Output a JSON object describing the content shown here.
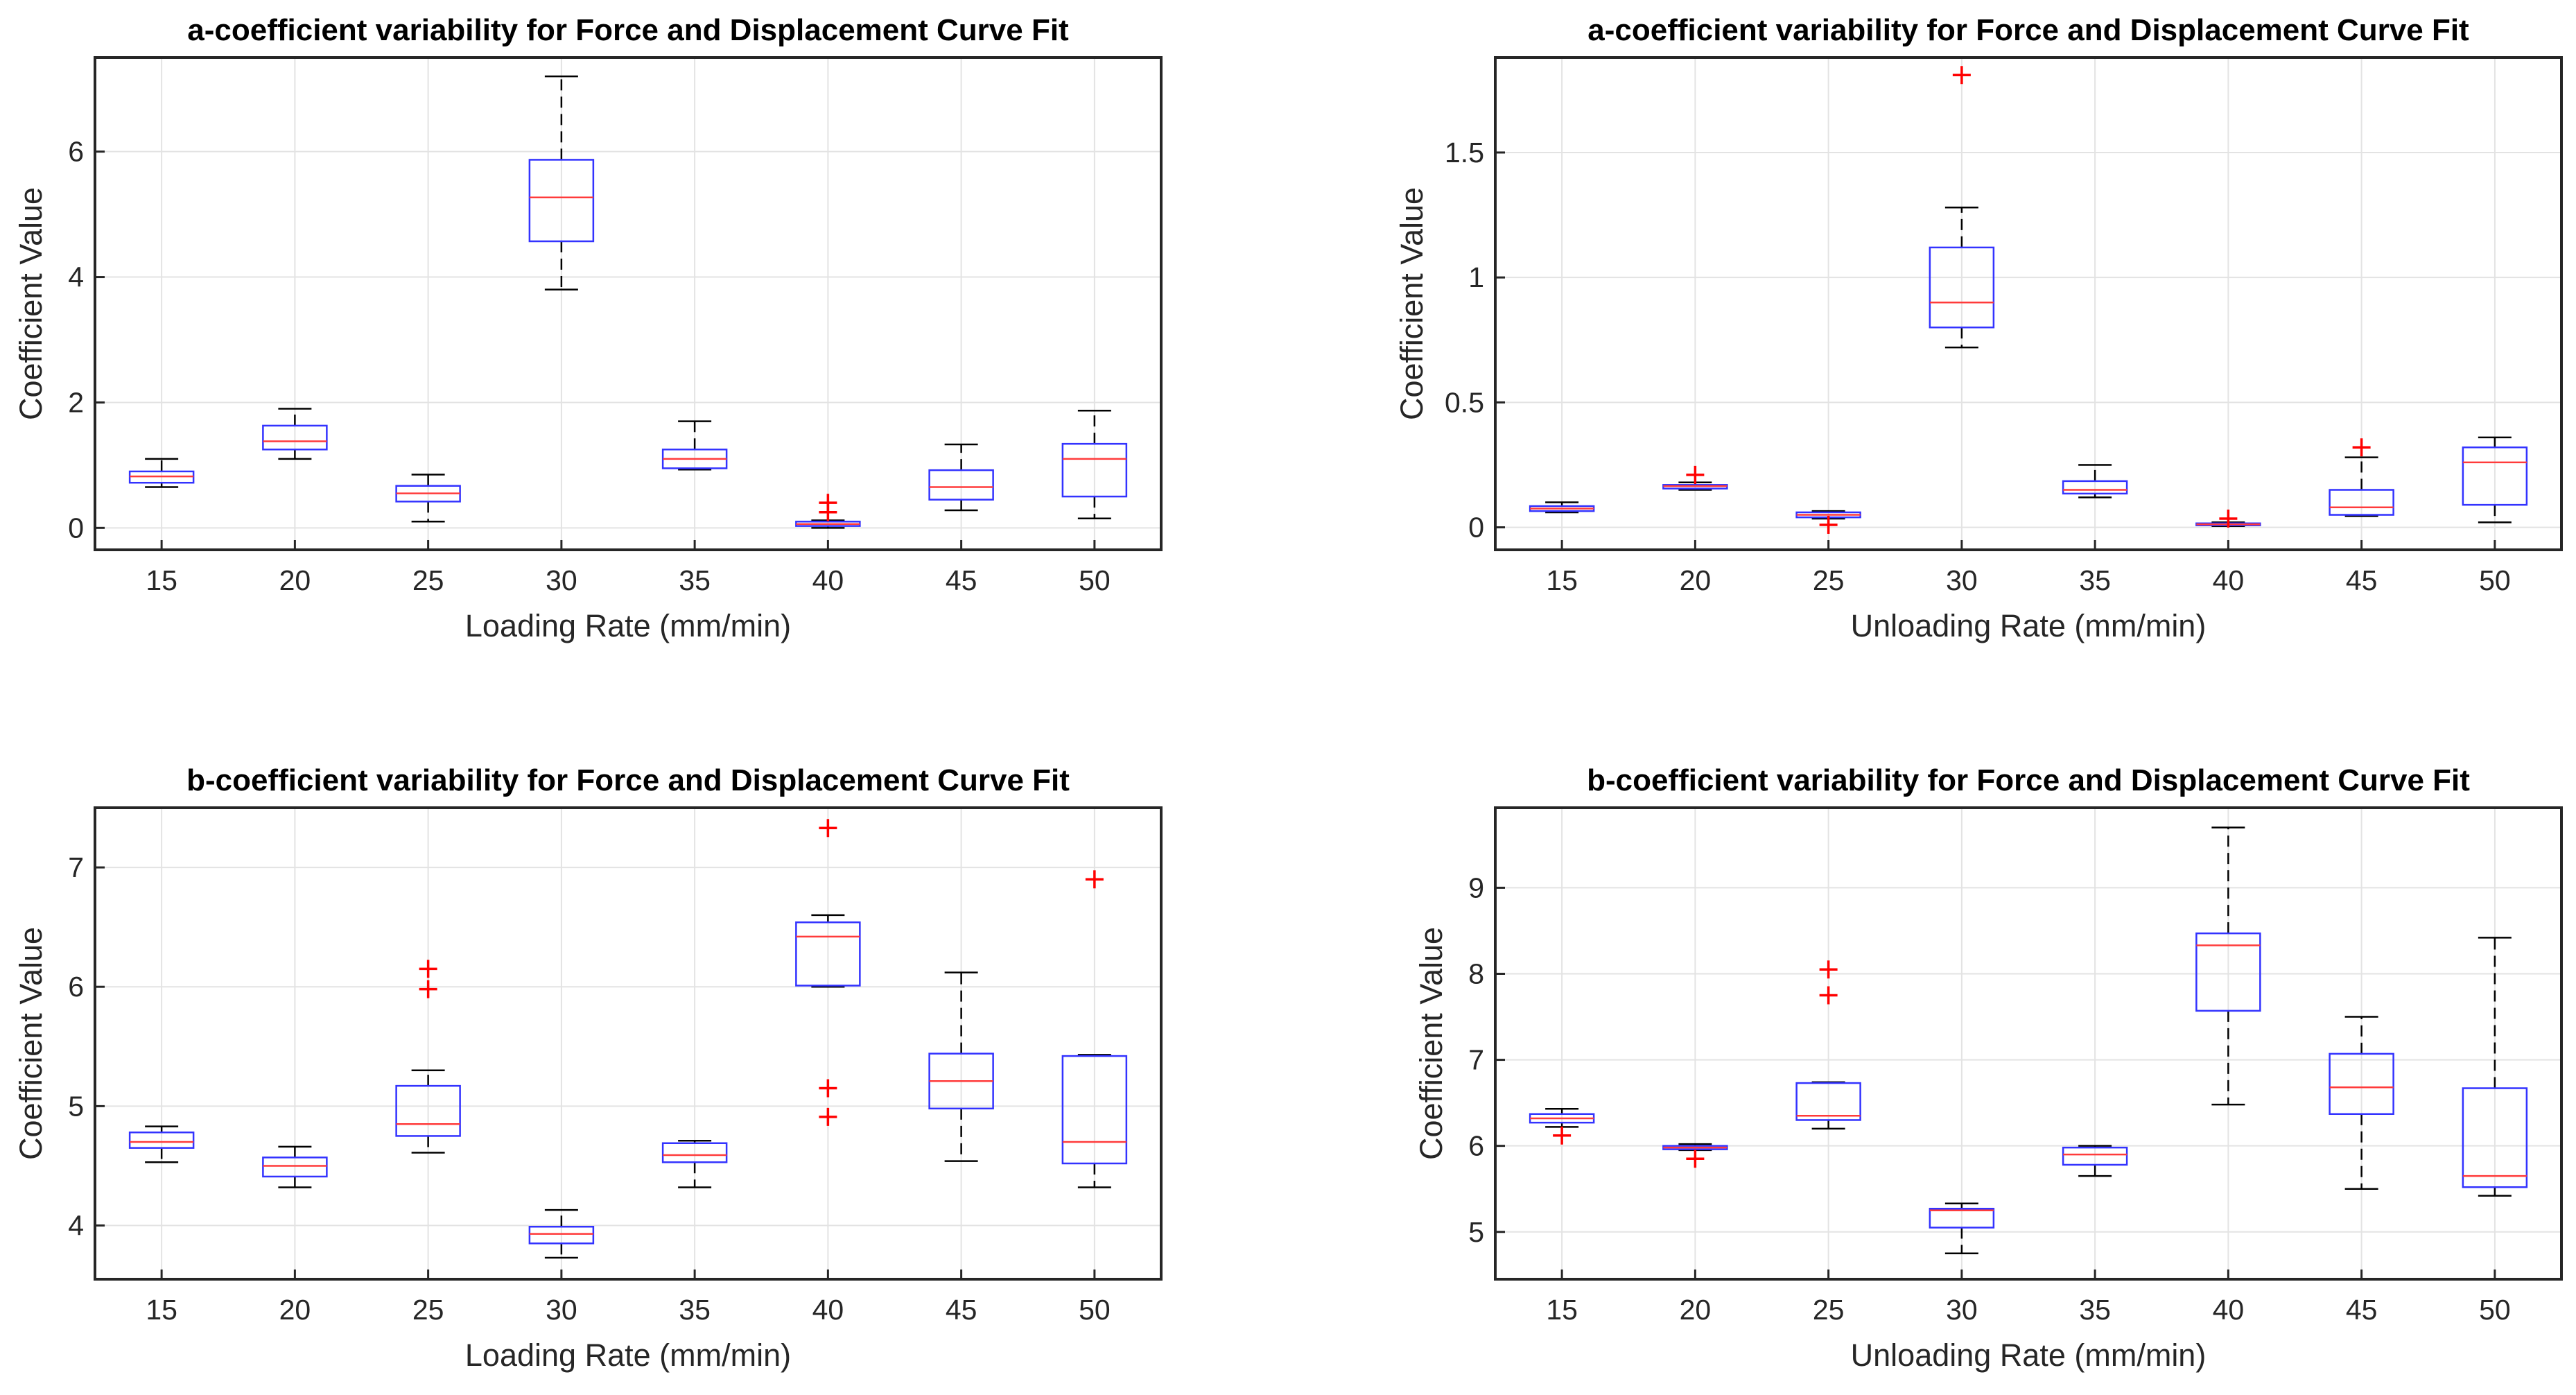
{
  "chart_data": [
    {
      "type": "boxplot",
      "title": "a-coefficient variability for Force and Displacement Curve Fit",
      "xlabel": "Loading Rate (mm/min)",
      "ylabel": "Coefficient Value",
      "ylim": [
        -0.35,
        7.5
      ],
      "yticks": [
        0,
        2,
        4,
        6
      ],
      "ytick_labels": [
        "0",
        "2",
        "4",
        "6"
      ],
      "grid": true,
      "categories": [
        "15",
        "20",
        "25",
        "30",
        "35",
        "40",
        "45",
        "50"
      ],
      "boxes": [
        {
          "low": 0.65,
          "q1": 0.72,
          "median": 0.82,
          "q3": 0.9,
          "high": 1.1,
          "outliers": []
        },
        {
          "low": 1.1,
          "q1": 1.25,
          "median": 1.38,
          "q3": 1.63,
          "high": 1.9,
          "outliers": []
        },
        {
          "low": 0.1,
          "q1": 0.42,
          "median": 0.55,
          "q3": 0.67,
          "high": 0.85,
          "outliers": []
        },
        {
          "low": 3.8,
          "q1": 4.57,
          "median": 5.27,
          "q3": 5.87,
          "high": 7.2,
          "outliers": []
        },
        {
          "low": 0.93,
          "q1": 0.95,
          "median": 1.1,
          "q3": 1.25,
          "high": 1.7,
          "outliers": []
        },
        {
          "low": 0.0,
          "q1": 0.03,
          "median": 0.06,
          "q3": 0.1,
          "high": 0.12,
          "outliers": [
            0.25,
            0.4
          ]
        },
        {
          "low": 0.28,
          "q1": 0.45,
          "median": 0.65,
          "q3": 0.92,
          "high": 1.33,
          "outliers": []
        },
        {
          "low": 0.15,
          "q1": 0.5,
          "median": 1.1,
          "q3": 1.34,
          "high": 1.87,
          "outliers": []
        }
      ]
    },
    {
      "type": "boxplot",
      "title": "a-coefficient variability for Force and Displacement Curve Fit",
      "xlabel": "Unloading Rate (mm/min)",
      "ylabel": "Coefficient Value",
      "ylim": [
        -0.09,
        1.88
      ],
      "yticks": [
        0,
        0.5,
        1,
        1.5
      ],
      "ytick_labels": [
        "0",
        "0.5",
        "1",
        "1.5"
      ],
      "grid": true,
      "categories": [
        "15",
        "20",
        "25",
        "30",
        "35",
        "40",
        "45",
        "50"
      ],
      "boxes": [
        {
          "low": 0.06,
          "q1": 0.065,
          "median": 0.075,
          "q3": 0.085,
          "high": 0.1,
          "outliers": []
        },
        {
          "low": 0.15,
          "q1": 0.155,
          "median": 0.165,
          "q3": 0.17,
          "high": 0.18,
          "outliers": [
            0.21
          ]
        },
        {
          "low": 0.035,
          "q1": 0.04,
          "median": 0.05,
          "q3": 0.06,
          "high": 0.065,
          "outliers": [
            0.01
          ]
        },
        {
          "low": 0.72,
          "q1": 0.8,
          "median": 0.9,
          "q3": 1.12,
          "high": 1.28,
          "outliers": [
            1.81
          ]
        },
        {
          "low": 0.12,
          "q1": 0.135,
          "median": 0.15,
          "q3": 0.185,
          "high": 0.25,
          "outliers": []
        },
        {
          "low": 0.005,
          "q1": 0.008,
          "median": 0.012,
          "q3": 0.016,
          "high": 0.02,
          "outliers": [
            0.035
          ]
        },
        {
          "low": 0.045,
          "q1": 0.05,
          "median": 0.08,
          "q3": 0.15,
          "high": 0.28,
          "outliers": [
            0.32
          ]
        },
        {
          "low": 0.02,
          "q1": 0.09,
          "median": 0.26,
          "q3": 0.32,
          "high": 0.36,
          "outliers": []
        }
      ]
    },
    {
      "type": "boxplot",
      "title": "b-coefficient variability for Force and Displacement Curve Fit",
      "xlabel": "Loading Rate (mm/min)",
      "ylabel": "Coefficient Value",
      "ylim": [
        3.55,
        7.5
      ],
      "yticks": [
        4,
        5,
        6,
        7
      ],
      "ytick_labels": [
        "4",
        "5",
        "6",
        "7"
      ],
      "grid": true,
      "categories": [
        "15",
        "20",
        "25",
        "30",
        "35",
        "40",
        "45",
        "50"
      ],
      "boxes": [
        {
          "low": 4.53,
          "q1": 4.65,
          "median": 4.7,
          "q3": 4.78,
          "high": 4.83,
          "outliers": []
        },
        {
          "low": 4.32,
          "q1": 4.41,
          "median": 4.5,
          "q3": 4.57,
          "high": 4.66,
          "outliers": []
        },
        {
          "low": 4.61,
          "q1": 4.75,
          "median": 4.85,
          "q3": 5.17,
          "high": 5.3,
          "outliers": [
            6.15,
            5.98
          ]
        },
        {
          "low": 3.73,
          "q1": 3.85,
          "median": 3.93,
          "q3": 3.99,
          "high": 4.13,
          "outliers": []
        },
        {
          "low": 4.32,
          "q1": 4.53,
          "median": 4.59,
          "q3": 4.69,
          "high": 4.71,
          "outliers": []
        },
        {
          "low": 6.0,
          "q1": 6.01,
          "median": 6.42,
          "q3": 6.54,
          "high": 6.6,
          "outliers": [
            7.33,
            5.15,
            4.91
          ]
        },
        {
          "low": 4.54,
          "q1": 4.98,
          "median": 5.21,
          "q3": 5.44,
          "high": 6.12,
          "outliers": []
        },
        {
          "low": 4.32,
          "q1": 4.52,
          "median": 4.7,
          "q3": 5.42,
          "high": 5.43,
          "outliers": [
            6.9
          ]
        }
      ]
    },
    {
      "type": "boxplot",
      "title": "b-coefficient variability for Force and Displacement Curve Fit",
      "xlabel": "Unloading Rate (mm/min)",
      "ylabel": "Coefficient Value",
      "ylim": [
        4.45,
        9.93
      ],
      "yticks": [
        5,
        6,
        7,
        8,
        9
      ],
      "ytick_labels": [
        "5",
        "6",
        "7",
        "8",
        "9"
      ],
      "grid": true,
      "categories": [
        "15",
        "20",
        "25",
        "30",
        "35",
        "40",
        "45",
        "50"
      ],
      "boxes": [
        {
          "low": 6.22,
          "q1": 6.27,
          "median": 6.32,
          "q3": 6.37,
          "high": 6.43,
          "outliers": [
            6.12
          ]
        },
        {
          "low": 5.95,
          "q1": 5.96,
          "median": 5.98,
          "q3": 6.0,
          "high": 6.02,
          "outliers": [
            5.85
          ]
        },
        {
          "low": 6.2,
          "q1": 6.3,
          "median": 6.35,
          "q3": 6.73,
          "high": 6.74,
          "outliers": [
            8.05,
            7.75
          ]
        },
        {
          "low": 4.75,
          "q1": 5.05,
          "median": 5.25,
          "q3": 5.27,
          "high": 5.33,
          "outliers": []
        },
        {
          "low": 5.65,
          "q1": 5.78,
          "median": 5.9,
          "q3": 5.98,
          "high": 6.0,
          "outliers": []
        },
        {
          "low": 6.48,
          "q1": 7.57,
          "median": 8.33,
          "q3": 8.47,
          "high": 9.7,
          "outliers": []
        },
        {
          "low": 5.5,
          "q1": 6.37,
          "median": 6.68,
          "q3": 7.07,
          "high": 7.5,
          "outliers": []
        },
        {
          "low": 5.42,
          "q1": 5.52,
          "median": 5.65,
          "q3": 6.67,
          "high": 8.42,
          "outliers": []
        }
      ]
    }
  ],
  "colors": {
    "box": "#3333ff",
    "median": "#ff3b3b",
    "whisker": "#000000",
    "outlier": "#ff0000",
    "grid": "#e3e3e3",
    "axis": "#262626"
  }
}
